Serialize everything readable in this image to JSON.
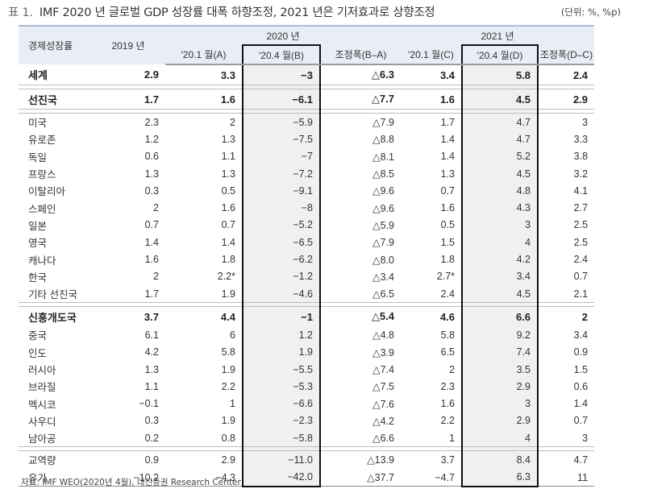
{
  "title": {
    "prefix": "표 1.",
    "text": "IMF 2020 년 글로벌 GDP 성장률 대폭 하향조정, 2021 년은 기저효과로 상향조정",
    "unit": "(단위: %, %p)"
  },
  "table": {
    "header": {
      "row_label": "경제성장률",
      "y2019": "2019 년",
      "y2020": "2020 년",
      "y2021": "2021 년",
      "cols": [
        "'20.1 월(A)",
        "'20.4 월(B)",
        "조정폭(B–A)",
        "'20.1 월(C)",
        "'20.4 월(D)",
        "조정폭(D–C)"
      ]
    },
    "groups": [
      {
        "rows": [
          {
            "name": "세계",
            "bold": true,
            "v": [
              "2.9",
              "3.3",
              "−3",
              "△6.3",
              "3.4",
              "5.8",
              "2.4"
            ]
          }
        ]
      },
      {
        "rows": [
          {
            "name": "선진국",
            "bold": true,
            "v": [
              "1.7",
              "1.6",
              "−6.1",
              "△7.7",
              "1.6",
              "4.5",
              "2.9"
            ]
          }
        ]
      },
      {
        "rows": [
          {
            "name": "미국",
            "v": [
              "2.3",
              "2",
              "−5.9",
              "△7.9",
              "1.7",
              "4.7",
              "3"
            ]
          },
          {
            "name": "유로존",
            "v": [
              "1.2",
              "1.3",
              "−7.5",
              "△8.8",
              "1.4",
              "4.7",
              "3.3"
            ]
          },
          {
            "name": "독일",
            "v": [
              "0.6",
              "1.1",
              "−7",
              "△8.1",
              "1.4",
              "5.2",
              "3.8"
            ]
          },
          {
            "name": "프랑스",
            "v": [
              "1.3",
              "1.3",
              "−7.2",
              "△8.5",
              "1.3",
              "4.5",
              "3.2"
            ]
          },
          {
            "name": "이탈리아",
            "v": [
              "0.3",
              "0.5",
              "−9.1",
              "△9.6",
              "0.7",
              "4.8",
              "4.1"
            ]
          },
          {
            "name": "스페인",
            "v": [
              "2",
              "1.6",
              "−8",
              "△9.6",
              "1.6",
              "4.3",
              "2.7"
            ]
          },
          {
            "name": "일본",
            "v": [
              "0.7",
              "0.7",
              "−5.2",
              "△5.9",
              "0.5",
              "3",
              "2.5"
            ]
          },
          {
            "name": "영국",
            "v": [
              "1.4",
              "1.4",
              "−6.5",
              "△7.9",
              "1.5",
              "4",
              "2.5"
            ]
          },
          {
            "name": "캐나다",
            "v": [
              "1.6",
              "1.8",
              "−6.2",
              "△8.0",
              "1.8",
              "4.2",
              "2.4"
            ]
          },
          {
            "name": "한국",
            "v": [
              "2",
              "2.2*",
              "−1.2",
              "△3.4",
              "2.7*",
              "3.4",
              "0.7"
            ]
          },
          {
            "name": "기타 선진국",
            "v": [
              "1.7",
              "1.9",
              "−4.6",
              "△6.5",
              "2.4",
              "4.5",
              "2.1"
            ]
          }
        ]
      },
      {
        "rows": [
          {
            "name": "신흥개도국",
            "bold": true,
            "v": [
              "3.7",
              "4.4",
              "−1",
              "△5.4",
              "4.6",
              "6.6",
              "2"
            ]
          },
          {
            "name": "중국",
            "v": [
              "6.1",
              "6",
              "1.2",
              "△4.8",
              "5.8",
              "9.2",
              "3.4"
            ]
          },
          {
            "name": "인도",
            "v": [
              "4.2",
              "5.8",
              "1.9",
              "△3.9",
              "6.5",
              "7.4",
              "0.9"
            ]
          },
          {
            "name": "러시아",
            "v": [
              "1.3",
              "1.9",
              "−5.5",
              "△7.4",
              "2",
              "3.5",
              "1.5"
            ]
          },
          {
            "name": "브라질",
            "v": [
              "1.1",
              "2.2",
              "−5.3",
              "△7.5",
              "2.3",
              "2.9",
              "0.6"
            ]
          },
          {
            "name": "멕시코",
            "v": [
              "−0.1",
              "1",
              "−6.6",
              "△7.6",
              "1.6",
              "3",
              "1.4"
            ]
          },
          {
            "name": "사우디",
            "v": [
              "0.3",
              "1.9",
              "−2.3",
              "△4.2",
              "2.2",
              "2.9",
              "0.7"
            ]
          },
          {
            "name": "남아공",
            "v": [
              "0.2",
              "0.8",
              "−5.8",
              "△6.6",
              "1",
              "4",
              "3"
            ]
          }
        ]
      },
      {
        "rows": [
          {
            "name": "교역량",
            "v": [
              "0.9",
              "2.9",
              "−11.0",
              "△13.9",
              "3.7",
              "8.4",
              "4.7"
            ]
          },
          {
            "name": "유가",
            "v": [
              "−10.2",
              "−4.3",
              "−42.0",
              "△37.7",
              "−4.7",
              "6.3",
              "11"
            ]
          }
        ]
      }
    ]
  },
  "source": "자료: IMF WEO(2020년 4월), 대신증권 Research Center",
  "colors": {
    "header_bg": "#e9eef6",
    "header_top_border": "#a9bcd8",
    "highlight_bg": "#f0f0f0",
    "box_border": "#111111"
  }
}
